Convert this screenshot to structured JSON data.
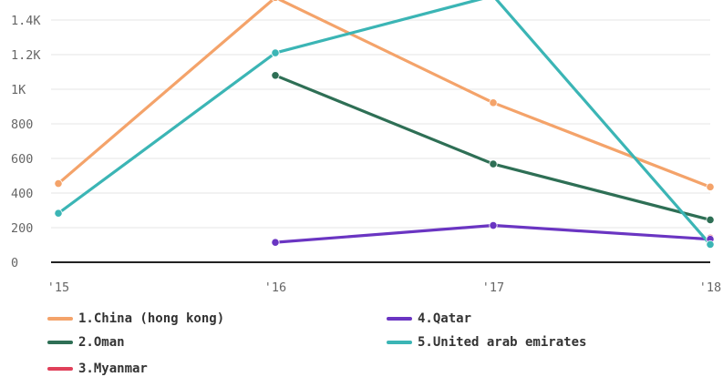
{
  "chart_data": {
    "type": "line",
    "x": [
      "'15",
      "'16",
      "'17",
      "'18"
    ],
    "y_ticks": [
      "0",
      "200",
      "400",
      "600",
      "800",
      "1K",
      "1.2K",
      "1.4K"
    ],
    "y_tick_values": [
      0,
      200,
      400,
      600,
      800,
      1000,
      1200,
      1400
    ],
    "ylim": [
      0,
      1480
    ],
    "grid": true,
    "legend_position": "bottom",
    "series": [
      {
        "name": "1.China (hong kong)",
        "color": "#f4a36a",
        "values": [
          455,
          1530,
          922,
          435
        ]
      },
      {
        "name": "2.Oman",
        "color": "#2e6f55",
        "values": [
          null,
          1080,
          568,
          245
        ]
      },
      {
        "name": "3.Myanmar",
        "color": "#e0405a",
        "values": [
          null,
          null,
          null,
          140
        ]
      },
      {
        "name": "4.Qatar",
        "color": "#6a35c2",
        "values": [
          null,
          115,
          213,
          133
        ]
      },
      {
        "name": "5.United arab emirates",
        "color": "#3bb5b5",
        "values": [
          283,
          1210,
          1540,
          103
        ]
      }
    ]
  }
}
